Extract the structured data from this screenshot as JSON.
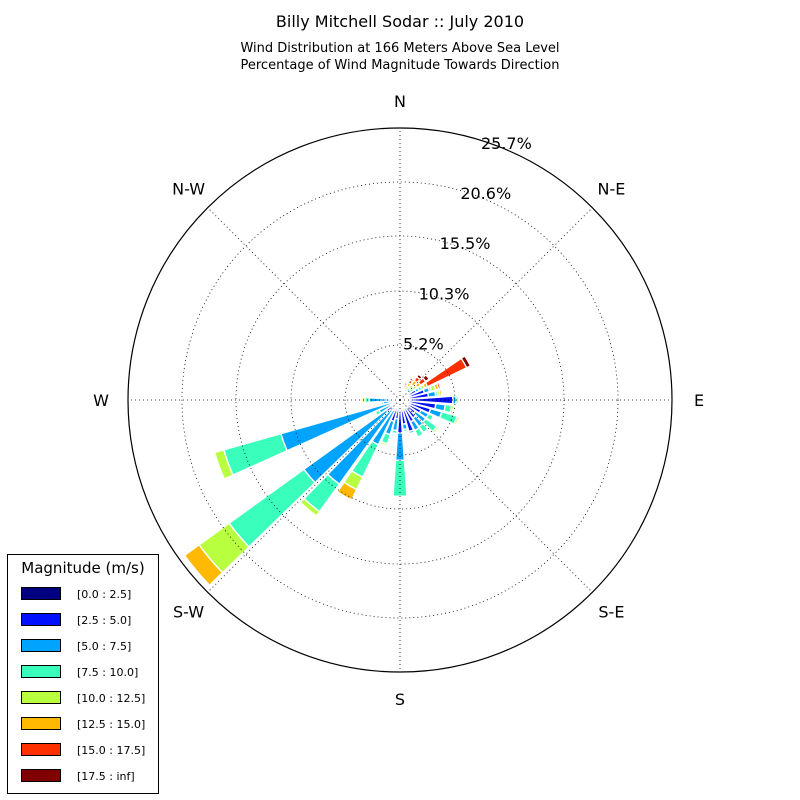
{
  "title": "Billy Mitchell Sodar :: July 2010",
  "subtitle_line1": "Wind Distribution at 166 Meters Above Sea Level",
  "subtitle_line2": "Percentage of Wind Magnitude Towards Direction",
  "directions": [
    "N",
    "N-E",
    "E",
    "S-E",
    "S",
    "S-W",
    "W",
    "N-W"
  ],
  "radial_labels": [
    "5.2%",
    "10.3%",
    "15.5%",
    "20.6%",
    "25.7%"
  ],
  "legend": {
    "title": "Magnitude (m/s)",
    "items": [
      {
        "label": "[0.0 : 2.5]",
        "color": "#000080"
      },
      {
        "label": "[2.5 : 5.0]",
        "color": "#0010ff"
      },
      {
        "label": "[5.0 : 7.5]",
        "color": "#00a4ff"
      },
      {
        "label": "[7.5 : 10.0]",
        "color": "#3affbc"
      },
      {
        "label": "[10.0 : 12.5]",
        "color": "#b7ff3f"
      },
      {
        "label": "[12.5 : 15.0]",
        "color": "#ffb900"
      },
      {
        "label": "[15.0 : 17.5]",
        "color": "#ff3000"
      },
      {
        "label": "[17.5 : inf]",
        "color": "#800000"
      }
    ]
  },
  "chart_data": {
    "type": "windrose",
    "title": "Billy Mitchell Sodar :: July 2010",
    "subtitle": [
      "Wind Distribution at 166 Meters Above Sea Level",
      "Percentage of Wind Magnitude Towards Direction"
    ],
    "unit": "percent",
    "r_max": 25.7,
    "r_ticks": [
      5.2,
      10.3,
      15.5,
      20.6,
      25.7
    ],
    "grid": true,
    "legend_position": "bottom-left",
    "bins": [
      "[0.0 : 2.5]",
      "[2.5 : 5.0]",
      "[5.0 : 7.5]",
      "[7.5 : 10.0]",
      "[10.0 : 12.5]",
      "[12.5 : 15.0]",
      "[15.0 : 17.5]",
      "[17.5 : inf]"
    ],
    "direction_sectors": [
      {
        "direction_deg": 0,
        "cumulative": [
          0.0,
          0.0,
          0.0,
          0.0,
          0.0,
          0.0,
          0.0,
          0.0
        ]
      },
      {
        "direction_deg": 10,
        "cumulative": [
          0.2,
          0.4,
          0.5,
          0.6,
          0.7,
          0.8,
          0.9,
          1.0
        ]
      },
      {
        "direction_deg": 20,
        "cumulative": [
          0.2,
          0.5,
          0.7,
          0.9,
          1.1,
          1.3,
          1.5,
          1.7
        ]
      },
      {
        "direction_deg": 30,
        "cumulative": [
          0.3,
          0.6,
          0.9,
          1.2,
          1.5,
          1.8,
          2.1,
          2.3
        ]
      },
      {
        "direction_deg": 40,
        "cumulative": [
          0.3,
          0.6,
          1.0,
          1.4,
          1.8,
          2.3,
          2.7,
          3.0
        ]
      },
      {
        "direction_deg": 50,
        "cumulative": [
          0.3,
          0.6,
          1.0,
          1.6,
          2.0,
          2.4,
          3.0,
          3.4
        ]
      },
      {
        "direction_deg": 60,
        "cumulative": [
          0.3,
          1.7,
          2.0,
          2.3,
          2.6,
          2.9,
          7.0,
          7.4
        ]
      },
      {
        "direction_deg": 70,
        "cumulative": [
          0.3,
          2.4,
          2.9,
          3.1,
          3.5,
          3.8,
          4.0,
          4.1
        ]
      },
      {
        "direction_deg": 80,
        "cumulative": [
          0.3,
          2.7,
          3.4,
          3.6,
          3.8,
          4.0,
          4.1,
          4.2
        ]
      },
      {
        "direction_deg": 90,
        "cumulative": [
          0.3,
          5.0,
          5.3,
          5.5,
          5.6,
          5.7,
          5.8,
          5.8
        ]
      },
      {
        "direction_deg": 100,
        "cumulative": [
          0.3,
          3.4,
          4.3,
          4.9,
          5.1,
          5.2,
          5.3,
          5.3
        ]
      },
      {
        "direction_deg": 110,
        "cumulative": [
          0.3,
          3.0,
          4.1,
          5.6,
          5.8,
          5.9,
          6.0,
          6.0
        ]
      },
      {
        "direction_deg": 120,
        "cumulative": [
          0.3,
          2.2,
          3.0,
          3.5,
          3.6,
          3.7,
          3.8,
          3.8
        ]
      },
      {
        "direction_deg": 130,
        "cumulative": [
          0.3,
          1.8,
          3.0,
          4.3,
          4.5,
          4.6,
          4.7,
          4.7
        ]
      },
      {
        "direction_deg": 140,
        "cumulative": [
          0.3,
          2.1,
          3.1,
          3.8,
          3.9,
          4.0,
          4.0,
          4.0
        ]
      },
      {
        "direction_deg": 150,
        "cumulative": [
          0.3,
          2.3,
          3.2,
          3.9,
          4.0,
          4.0,
          4.0,
          4.0
        ]
      },
      {
        "direction_deg": 160,
        "cumulative": [
          0.3,
          3.1,
          3.3,
          3.4,
          3.4,
          3.4,
          3.4,
          3.4
        ]
      },
      {
        "direction_deg": 170,
        "cumulative": [
          0.3,
          2.3,
          2.8,
          3.0,
          3.1,
          3.1,
          3.1,
          3.1
        ]
      },
      {
        "direction_deg": 180,
        "cumulative": [
          0.3,
          3.1,
          5.7,
          9.1,
          9.2,
          9.2,
          9.2,
          9.2
        ]
      },
      {
        "direction_deg": 190,
        "cumulative": [
          0.3,
          1.8,
          2.9,
          3.2,
          3.3,
          3.3,
          3.3,
          3.3
        ]
      },
      {
        "direction_deg": 200,
        "cumulative": [
          0.3,
          2.1,
          3.4,
          4.3,
          4.5,
          4.6,
          4.6,
          4.6
        ]
      },
      {
        "direction_deg": 210,
        "cumulative": [
          0.3,
          1.1,
          4.7,
          8.1,
          9.4,
          10.5,
          10.5,
          10.5
        ]
      },
      {
        "direction_deg": 220,
        "cumulative": [
          0.3,
          1.2,
          9.8,
          13.0,
          13.5,
          13.5,
          13.5,
          13.5
        ]
      },
      {
        "direction_deg": 230,
        "cumulative": [
          0.3,
          1.6,
          11.2,
          19.9,
          23.4,
          25.1,
          25.1,
          25.1
        ]
      },
      {
        "direction_deg": 240,
        "cumulative": [
          0.3,
          1.0,
          2.2,
          2.6,
          2.7,
          2.7,
          2.7,
          2.7
        ]
      },
      {
        "direction_deg": 250,
        "cumulative": [
          0.3,
          0.8,
          11.7,
          17.3,
          18.2,
          18.2,
          18.2,
          18.2
        ]
      },
      {
        "direction_deg": 260,
        "cumulative": [
          0.3,
          0.7,
          1.6,
          1.8,
          1.9,
          1.9,
          1.9,
          1.9
        ]
      },
      {
        "direction_deg": 270,
        "cumulative": [
          0.3,
          0.5,
          2.9,
          3.3,
          3.6,
          3.6,
          3.6,
          3.6
        ]
      },
      {
        "direction_deg": 280,
        "cumulative": [
          0.3,
          0.4,
          0.8,
          0.9,
          0.9,
          0.9,
          0.9,
          0.9
        ]
      },
      {
        "direction_deg": 290,
        "cumulative": [
          0.3,
          0.5,
          0.6,
          0.6,
          0.6,
          0.6,
          0.6,
          0.6
        ]
      },
      {
        "direction_deg": 300,
        "cumulative": [
          0.3,
          0.4,
          0.4,
          0.4,
          0.4,
          0.4,
          0.4,
          0.4
        ]
      },
      {
        "direction_deg": 310,
        "cumulative": [
          0.3,
          0.4,
          0.4,
          0.4,
          0.4,
          0.4,
          0.4,
          0.4
        ]
      },
      {
        "direction_deg": 320,
        "cumulative": [
          0.3,
          0.4,
          0.4,
          0.4,
          0.4,
          0.4,
          0.4,
          0.4
        ]
      },
      {
        "direction_deg": 330,
        "cumulative": [
          0.3,
          0.4,
          0.5,
          0.5,
          0.5,
          0.5,
          0.5,
          0.5
        ]
      },
      {
        "direction_deg": 340,
        "cumulative": [
          0.2,
          0.3,
          0.3,
          0.3,
          0.3,
          0.3,
          0.3,
          0.3
        ]
      },
      {
        "direction_deg": 350,
        "cumulative": [
          0.2,
          0.3,
          0.3,
          0.3,
          0.3,
          0.3,
          0.3,
          0.3
        ]
      }
    ]
  }
}
